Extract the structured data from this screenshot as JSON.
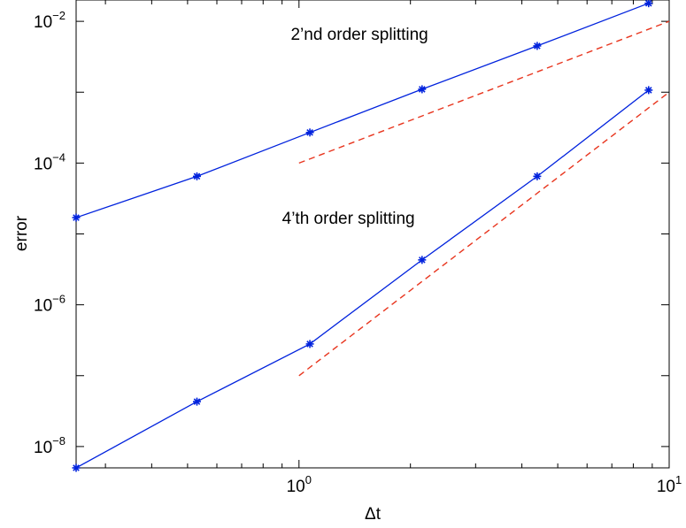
{
  "chart_data": {
    "type": "line",
    "x_scale": "log",
    "y_scale": "log",
    "xlim": [
      0.25,
      10
    ],
    "ylim": [
      5e-09,
      0.02
    ],
    "xlabel": "Δt",
    "ylabel": "error",
    "grid": false,
    "x_ticks": [
      {
        "value": 1,
        "base": "10",
        "exp": "0"
      },
      {
        "value": 10,
        "base": "10",
        "exp": "1"
      }
    ],
    "y_ticks": [
      {
        "value": 1e-08,
        "base": "10",
        "exp": "−8"
      },
      {
        "value": 1e-06,
        "base": "10",
        "exp": "−6"
      },
      {
        "value": 0.0001,
        "base": "10",
        "exp": "−4"
      },
      {
        "value": 0.01,
        "base": "10",
        "exp": "−2"
      }
    ],
    "series": [
      {
        "style": "solid",
        "color": "#0022dd",
        "marker": "*",
        "x": [
          0.25,
          0.53,
          1.07,
          2.15,
          4.4,
          8.8
        ],
        "y": [
          1.7e-05,
          6.5e-05,
          0.00027,
          0.0011,
          0.0045,
          0.018
        ]
      },
      {
        "style": "solid",
        "color": "#0022dd",
        "marker": "*",
        "x": [
          0.25,
          0.53,
          1.07,
          2.15,
          4.4,
          8.8
        ],
        "y": [
          5e-09,
          4.3e-08,
          2.8e-07,
          4.3e-06,
          6.5e-05,
          0.00107
        ]
      },
      {
        "style": "dashed",
        "color": "#e8351e",
        "marker": "",
        "x": [
          1,
          10
        ],
        "y": [
          0.0001,
          0.01
        ]
      },
      {
        "style": "dashed",
        "color": "#e8351e",
        "marker": "",
        "x": [
          1,
          10
        ],
        "y": [
          1e-07,
          0.001
        ]
      }
    ],
    "annotations": [
      {
        "text": "2’nd order splitting",
        "x": 0.95,
        "y": 0.0055
      },
      {
        "text": "4’th order splitting",
        "x": 0.9,
        "y": 1.4e-05
      }
    ]
  }
}
